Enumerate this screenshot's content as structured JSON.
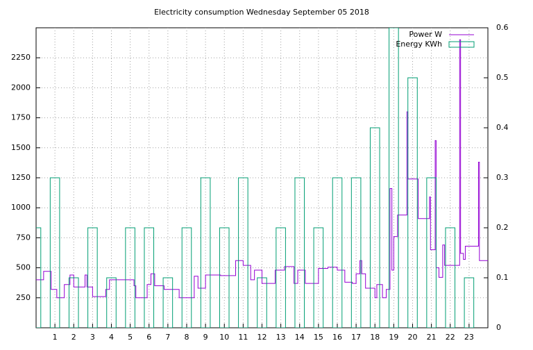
{
  "chart_data": {
    "type": "line",
    "title": "Electricity consumption Wednesday September 05 2018",
    "xlim": [
      0,
      24
    ],
    "xticks": [
      1,
      2,
      3,
      4,
      5,
      6,
      7,
      8,
      9,
      10,
      11,
      12,
      13,
      14,
      15,
      16,
      17,
      18,
      19,
      20,
      21,
      22,
      23
    ],
    "ylim": [
      0,
      2500
    ],
    "yticks": [
      250,
      500,
      750,
      1000,
      1250,
      1500,
      1750,
      2000,
      2250
    ],
    "y2lim": [
      0,
      0.6
    ],
    "y2ticks": [
      0,
      0.1,
      0.2,
      0.3,
      0.4,
      0.5,
      0.6
    ],
    "grid": true,
    "legend": "top-right",
    "series": [
      {
        "name": "Power W",
        "color": "#9400d3",
        "style": "steps",
        "x": [
          0,
          0.4,
          0.8,
          1.1,
          1.5,
          1.8,
          2.0,
          2.6,
          2.7,
          3.0,
          3.7,
          3.9,
          5.2,
          5.3,
          5.9,
          6.1,
          6.3,
          6.8,
          7.6,
          8.4,
          8.6,
          9.0,
          9.8,
          10.6,
          11.0,
          11.4,
          11.6,
          12.0,
          12.7,
          13.2,
          13.7,
          13.9,
          14.3,
          15.0,
          15.5,
          16.0,
          16.4,
          16.8,
          17.0,
          17.2,
          17.3,
          17.5,
          18.0,
          18.1,
          18.4,
          18.6,
          18.8,
          18.9,
          19.0,
          19.2,
          19.7,
          19.75,
          20.3,
          20.9,
          20.95,
          21.2,
          21.25,
          21.4,
          21.6,
          21.7,
          22.5,
          22.55,
          22.7,
          22.8,
          23.5,
          23.55,
          24
        ],
        "values": [
          400,
          470,
          320,
          250,
          360,
          440,
          340,
          440,
          340,
          260,
          320,
          400,
          350,
          250,
          360,
          450,
          350,
          320,
          250,
          430,
          330,
          440,
          435,
          560,
          520,
          400,
          480,
          370,
          480,
          510,
          370,
          480,
          370,
          495,
          505,
          480,
          380,
          370,
          450,
          560,
          450,
          330,
          250,
          360,
          250,
          320,
          1160,
          480,
          760,
          940,
          1800,
          1240,
          910,
          1090,
          650,
          1560,
          500,
          420,
          690,
          520,
          2400,
          620,
          570,
          680,
          1380,
          560,
          560
        ]
      },
      {
        "name": "Energy KWh",
        "color": "#009e73",
        "style": "boxes",
        "axis": "y2",
        "x": [
          0,
          1,
          2,
          3,
          4,
          5,
          6,
          7,
          8,
          9,
          10,
          11,
          12,
          13,
          14,
          15,
          16,
          17,
          18,
          19,
          20,
          21,
          22,
          23
        ],
        "values": [
          0.2,
          0.3,
          0.1,
          0.2,
          0.1,
          0.2,
          0.2,
          0.1,
          0.2,
          0.3,
          0.2,
          0.3,
          0.1,
          0.2,
          0.3,
          0.2,
          0.3,
          0.3,
          0.4,
          0.6,
          0.5,
          0.3,
          0.2,
          0.1
        ]
      }
    ]
  }
}
